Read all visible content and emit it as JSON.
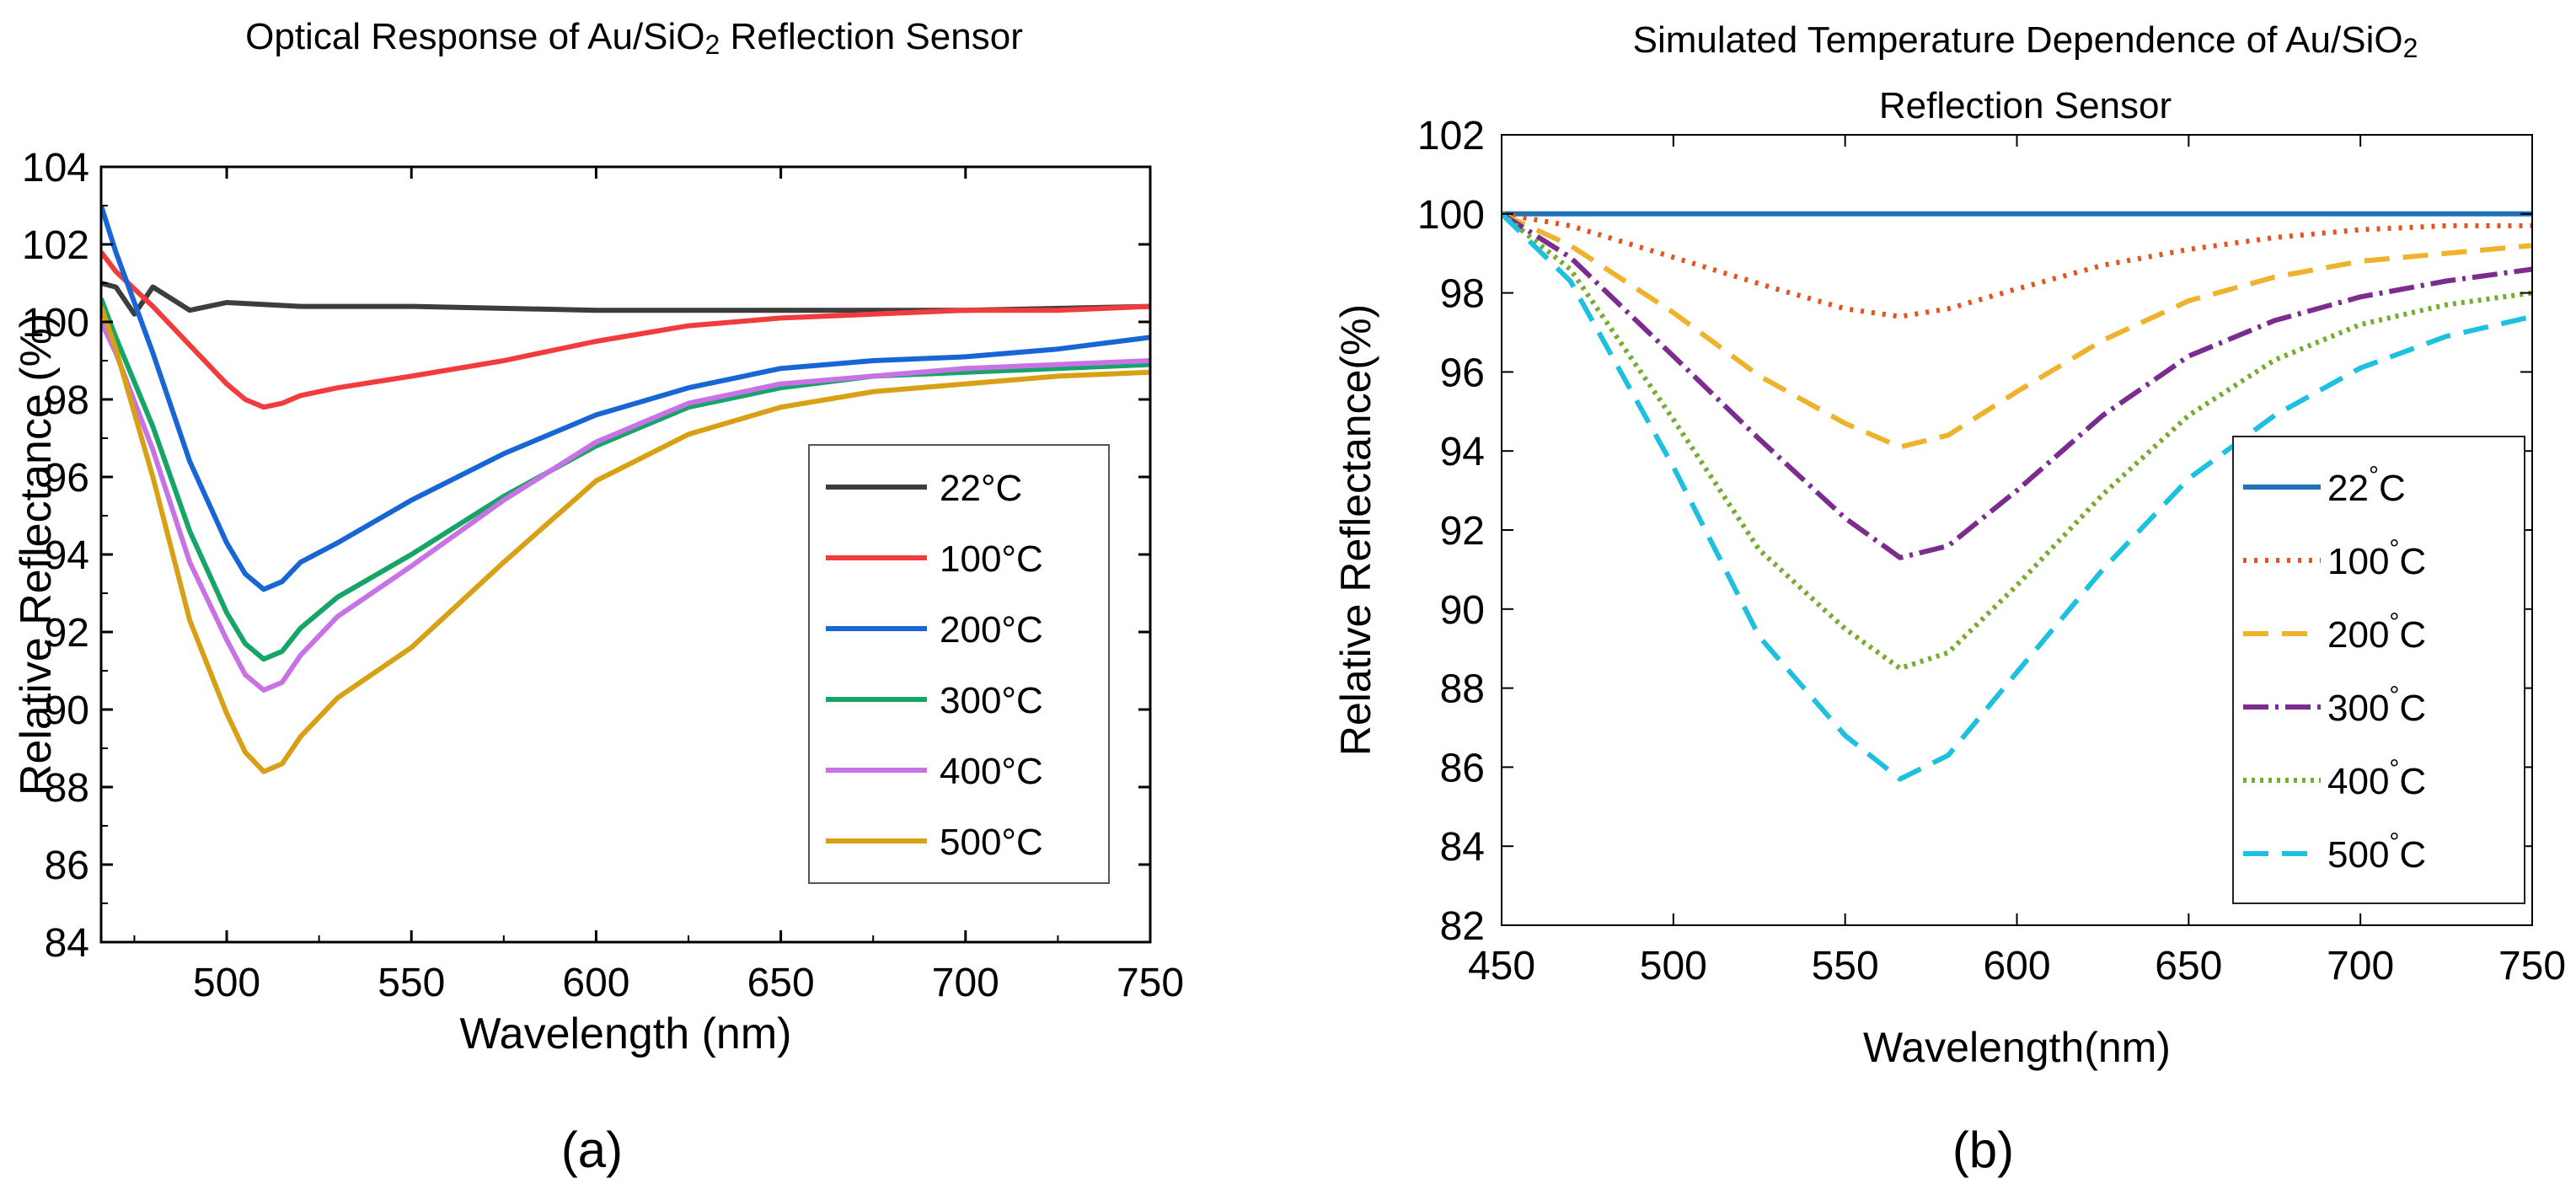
{
  "chart_data": [
    {
      "type": "line",
      "panel_label": "(a)",
      "title": "Optical Response of Au/SiO",
      "title_sub": "2",
      "title_tail": " Reflection Sensor",
      "xlabel": "Wavelength (nm)",
      "ylabel": "Relative Reflectance (%)",
      "xlim": [
        466,
        750
      ],
      "ylim": [
        84,
        104
      ],
      "xticks": [
        500,
        550,
        600,
        650,
        700,
        750
      ],
      "yticks": [
        84,
        86,
        88,
        90,
        92,
        94,
        96,
        98,
        100,
        102,
        104
      ],
      "legend_position": "right-middle",
      "series": [
        {
          "name": "22°C",
          "color": "#3d3d3d",
          "dash": "",
          "x": [
            466,
            470,
            475,
            480,
            490,
            500,
            520,
            550,
            600,
            650,
            700,
            750
          ],
          "y": [
            101.0,
            100.9,
            100.2,
            100.9,
            100.3,
            100.5,
            100.4,
            100.4,
            100.3,
            100.3,
            100.3,
            100.4
          ]
        },
        {
          "name": "100°C",
          "color": "#f03c3c",
          "dash": "",
          "x": [
            466,
            470,
            480,
            490,
            500,
            505,
            510,
            515,
            520,
            530,
            550,
            575,
            600,
            625,
            650,
            675,
            700,
            725,
            750
          ],
          "y": [
            101.8,
            101.3,
            100.4,
            99.4,
            98.4,
            98.0,
            97.8,
            97.9,
            98.1,
            98.3,
            98.6,
            99.0,
            99.5,
            99.9,
            100.1,
            100.2,
            100.3,
            100.3,
            100.4
          ]
        },
        {
          "name": "200°C",
          "color": "#1766d4",
          "dash": "",
          "x": [
            466,
            470,
            480,
            490,
            500,
            505,
            510,
            515,
            520,
            530,
            550,
            575,
            600,
            625,
            650,
            675,
            700,
            725,
            750
          ],
          "y": [
            103.0,
            101.8,
            99.2,
            96.4,
            94.3,
            93.5,
            93.1,
            93.3,
            93.8,
            94.3,
            95.4,
            96.6,
            97.6,
            98.3,
            98.8,
            99.0,
            99.1,
            99.3,
            99.6
          ]
        },
        {
          "name": "300°C",
          "color": "#16a566",
          "dash": "",
          "x": [
            466,
            470,
            480,
            490,
            500,
            505,
            510,
            515,
            520,
            530,
            550,
            575,
            600,
            625,
            650,
            675,
            700,
            725,
            750
          ],
          "y": [
            100.6,
            99.6,
            97.3,
            94.6,
            92.5,
            91.7,
            91.3,
            91.5,
            92.1,
            92.9,
            94.0,
            95.5,
            96.8,
            97.8,
            98.3,
            98.6,
            98.7,
            98.8,
            98.9
          ]
        },
        {
          "name": "400°C",
          "color": "#c872e6",
          "dash": "",
          "x": [
            466,
            470,
            480,
            490,
            500,
            505,
            510,
            515,
            520,
            530,
            550,
            575,
            600,
            625,
            650,
            675,
            700,
            725,
            750
          ],
          "y": [
            100.0,
            99.2,
            96.7,
            93.8,
            91.8,
            90.9,
            90.5,
            90.7,
            91.4,
            92.4,
            93.7,
            95.4,
            96.9,
            97.9,
            98.4,
            98.6,
            98.8,
            98.9,
            99.0
          ]
        },
        {
          "name": "500°C",
          "color": "#d8a015",
          "dash": "",
          "x": [
            466,
            470,
            480,
            490,
            500,
            505,
            510,
            515,
            520,
            530,
            550,
            575,
            600,
            625,
            650,
            675,
            700,
            725,
            750
          ],
          "y": [
            100.4,
            99.3,
            96.0,
            92.3,
            89.9,
            88.9,
            88.4,
            88.6,
            89.3,
            90.3,
            91.6,
            93.8,
            95.9,
            97.1,
            97.8,
            98.2,
            98.4,
            98.6,
            98.7
          ]
        }
      ]
    },
    {
      "type": "line",
      "panel_label": "(b)",
      "title": "Simulated Temperature Dependence of Au/SiO",
      "title_sub": "2",
      "title_line2": "Reflection Sensor",
      "xlabel": "Wavelength(nm)",
      "ylabel": "Relative Reflectance(%)",
      "xlim": [
        450,
        750
      ],
      "ylim": [
        82,
        102
      ],
      "xticks": [
        450,
        500,
        550,
        600,
        650,
        700,
        750
      ],
      "yticks": [
        82,
        84,
        86,
        88,
        90,
        92,
        94,
        96,
        98,
        100,
        102
      ],
      "legend_position": "bottom-right",
      "legend_suffix": "C",
      "legend_degree": "°",
      "series": [
        {
          "name": "22",
          "color": "#1f72b8",
          "dash": "",
          "x": [
            450,
            750
          ],
          "y": [
            100,
            100
          ]
        },
        {
          "name": "100",
          "color": "#e0561e",
          "dash": "4 9",
          "x": [
            450,
            470,
            500,
            530,
            550,
            566,
            580,
            600,
            625,
            650,
            675,
            700,
            725,
            750
          ],
          "y": [
            100.0,
            99.7,
            98.9,
            98.1,
            97.6,
            97.4,
            97.6,
            98.1,
            98.7,
            99.1,
            99.4,
            99.6,
            99.7,
            99.7
          ]
        },
        {
          "name": "200",
          "color": "#eeb22c",
          "dash": "30 16",
          "x": [
            450,
            470,
            500,
            525,
            550,
            566,
            580,
            600,
            625,
            650,
            675,
            700,
            725,
            750
          ],
          "y": [
            100.0,
            99.2,
            97.5,
            95.9,
            94.7,
            94.1,
            94.4,
            95.5,
            96.8,
            97.8,
            98.4,
            98.8,
            99.0,
            99.2
          ]
        },
        {
          "name": "300",
          "color": "#7c2b8e",
          "dash": "30 8 4 8",
          "x": [
            450,
            470,
            500,
            525,
            550,
            566,
            580,
            600,
            625,
            650,
            675,
            700,
            725,
            750
          ],
          "y": [
            100.0,
            98.9,
            96.4,
            94.3,
            92.3,
            91.3,
            91.6,
            93.0,
            94.9,
            96.4,
            97.3,
            97.9,
            98.3,
            98.6
          ]
        },
        {
          "name": "400",
          "color": "#77ac30",
          "dash": "4 6",
          "x": [
            450,
            470,
            500,
            525,
            550,
            566,
            580,
            600,
            625,
            650,
            675,
            700,
            725,
            750
          ],
          "y": [
            100.0,
            98.6,
            94.8,
            91.5,
            89.5,
            88.5,
            88.9,
            90.6,
            92.9,
            94.9,
            96.3,
            97.2,
            97.7,
            98.0
          ]
        },
        {
          "name": "500",
          "color": "#1ec0e0",
          "dash": "30 16",
          "x": [
            450,
            470,
            500,
            525,
            550,
            566,
            580,
            600,
            625,
            650,
            675,
            700,
            725,
            750
          ],
          "y": [
            100.0,
            98.3,
            93.6,
            89.3,
            86.8,
            85.7,
            86.3,
            88.4,
            91.0,
            93.3,
            94.9,
            96.1,
            96.9,
            97.4
          ]
        }
      ]
    }
  ]
}
